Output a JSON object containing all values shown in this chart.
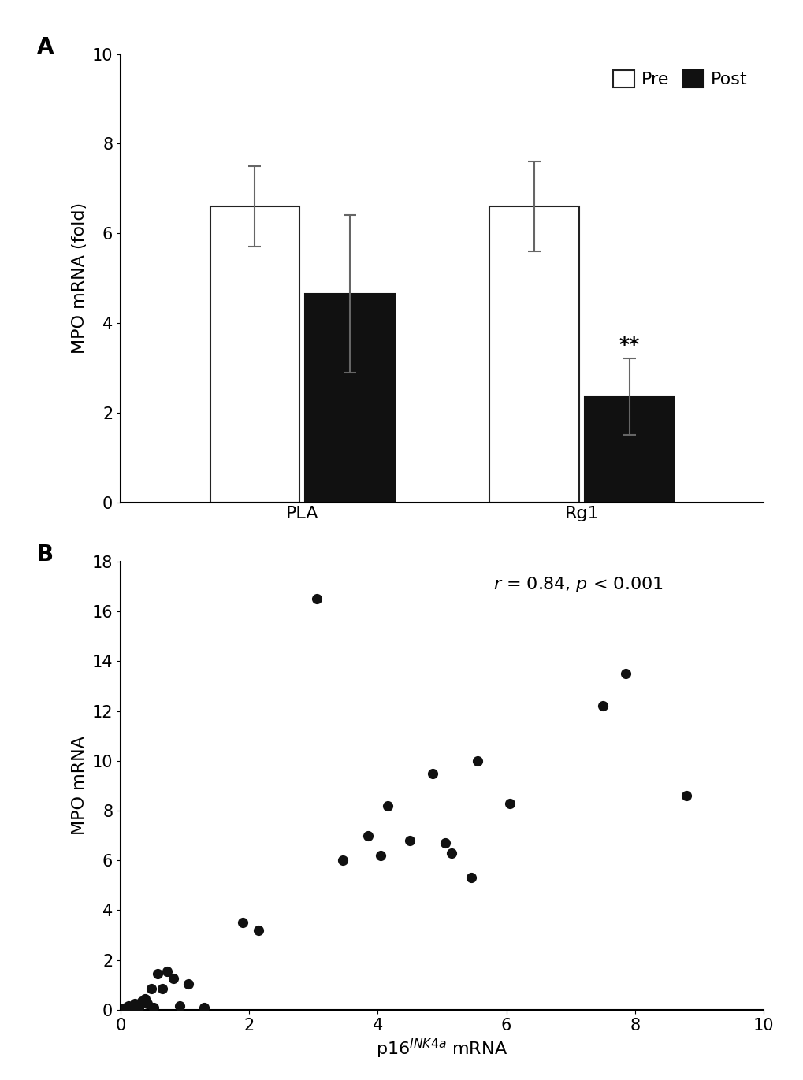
{
  "panel_A": {
    "groups": [
      "PLA",
      "Rg1"
    ],
    "pre_values": [
      6.6,
      6.6
    ],
    "post_values": [
      4.65,
      2.35
    ],
    "pre_errors": [
      0.9,
      1.0
    ],
    "post_errors": [
      1.75,
      0.85
    ],
    "ylabel": "MPO mRNA (fold)",
    "ylim": [
      0,
      10
    ],
    "yticks": [
      0,
      2,
      4,
      6,
      8,
      10
    ],
    "bar_width": 0.32,
    "pre_color": "#ffffff",
    "post_color": "#111111",
    "pre_edge_color": "#222222",
    "post_edge_color": "#111111",
    "significance_label": "**",
    "legend_labels": [
      "Pre",
      "Post"
    ],
    "panel_label": "A",
    "group_positions": [
      0.25,
      0.75
    ]
  },
  "panel_B": {
    "scatter_x": [
      0.05,
      0.08,
      0.12,
      0.18,
      0.22,
      0.28,
      0.33,
      0.38,
      0.42,
      0.48,
      0.52,
      0.58,
      0.65,
      0.72,
      0.82,
      0.92,
      1.05,
      1.3,
      1.9,
      2.15,
      3.05,
      3.45,
      3.85,
      4.05,
      4.15,
      4.5,
      4.85,
      5.05,
      5.15,
      5.45,
      5.55,
      6.05,
      7.5,
      7.85,
      8.8
    ],
    "scatter_y": [
      0.05,
      0.1,
      0.15,
      0.05,
      0.25,
      0.1,
      0.35,
      0.45,
      0.25,
      0.85,
      0.1,
      1.45,
      0.85,
      1.55,
      1.25,
      0.15,
      1.05,
      0.1,
      3.5,
      3.2,
      16.5,
      6.0,
      7.0,
      6.2,
      8.2,
      6.8,
      9.5,
      6.7,
      6.3,
      5.3,
      10.0,
      8.3,
      12.2,
      13.5,
      8.6
    ],
    "ylabel": "MPO mRNA",
    "xlim": [
      0,
      10
    ],
    "ylim": [
      0,
      18
    ],
    "xticks": [
      0,
      2,
      4,
      6,
      8,
      10
    ],
    "yticks": [
      0,
      2,
      4,
      6,
      8,
      10,
      12,
      14,
      16,
      18
    ],
    "marker_color": "#111111",
    "marker_size": 90,
    "panel_label": "B"
  },
  "figure_bg": "#ffffff",
  "font_family": "DejaVu Sans",
  "label_fontsize": 16,
  "tick_fontsize": 15,
  "panel_label_fontsize": 20
}
